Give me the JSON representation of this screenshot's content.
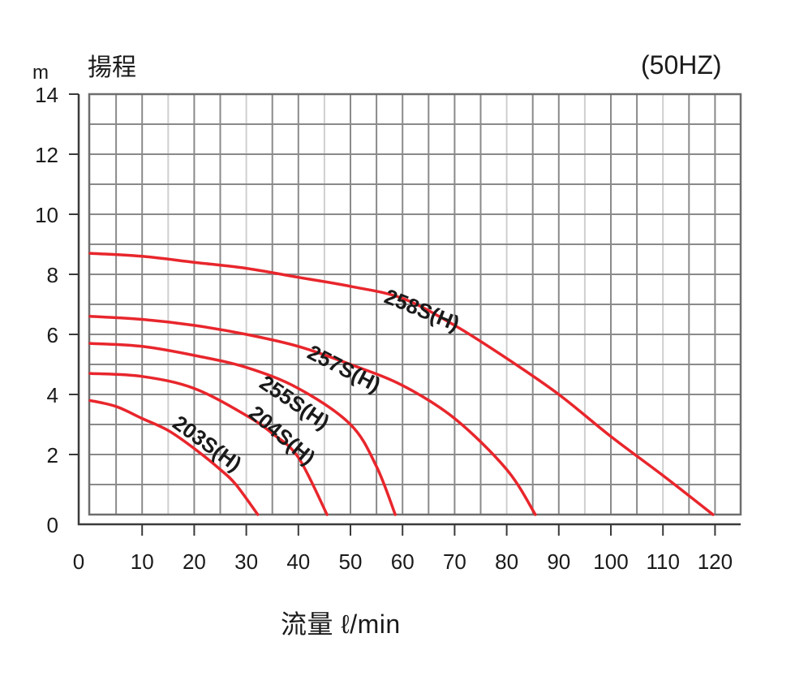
{
  "chart_data": {
    "type": "line",
    "title": "揚程",
    "subtitle": "(50HZ)",
    "xlabel": "流量 ℓ/min",
    "ylabel": "揚程",
    "yunit": "m",
    "xlim": [
      0,
      125
    ],
    "ylim": [
      0,
      14
    ],
    "xticks": [
      0,
      10,
      20,
      30,
      40,
      50,
      60,
      70,
      80,
      90,
      100,
      110,
      120
    ],
    "yticks": [
      0,
      2,
      4,
      6,
      8,
      10,
      12,
      14
    ],
    "grid": true,
    "grid_x_step": 5,
    "grid_y_step": 1,
    "legend": "inline curve labels",
    "series": [
      {
        "name": "258S(H)",
        "x": [
          0,
          10,
          20,
          30,
          40,
          50,
          60,
          70,
          80,
          90,
          100,
          110,
          119.6
        ],
        "y": [
          8.7,
          8.6,
          8.4,
          8.2,
          7.9,
          7.6,
          7.2,
          6.3,
          5.2,
          4.0,
          2.6,
          1.3,
          0
        ]
      },
      {
        "name": "257S(H)",
        "x": [
          0,
          10,
          20,
          30,
          40,
          50,
          60,
          70,
          80,
          85.5
        ],
        "y": [
          6.6,
          6.5,
          6.3,
          6.0,
          5.6,
          5.0,
          4.3,
          3.2,
          1.5,
          0
        ]
      },
      {
        "name": "255S(H)",
        "x": [
          0,
          10,
          20,
          30,
          40,
          50,
          55,
          58.6
        ],
        "y": [
          5.7,
          5.6,
          5.3,
          4.9,
          4.2,
          3.0,
          1.6,
          0
        ]
      },
      {
        "name": "204S(H)",
        "x": [
          0,
          10,
          20,
          30,
          35,
          40,
          45.5
        ],
        "y": [
          4.7,
          4.6,
          4.2,
          3.3,
          2.7,
          1.9,
          0
        ]
      },
      {
        "name": "203S(H)",
        "x": [
          0,
          5,
          10,
          15,
          20,
          25,
          28,
          32.2
        ],
        "y": [
          3.8,
          3.6,
          3.2,
          2.8,
          2.2,
          1.5,
          1.0,
          0
        ]
      }
    ]
  },
  "header": {
    "title": "揚程",
    "frequency": "(50HZ)",
    "y_unit": "m"
  },
  "footer": {
    "xlabel": "流量 ℓ/min"
  },
  "colors": {
    "curve": "#e8262c",
    "grid": "#8a8a8a",
    "grid_light": "#cfcfcf",
    "axis": "#3a3a3a",
    "text": "#1a1a1a"
  }
}
